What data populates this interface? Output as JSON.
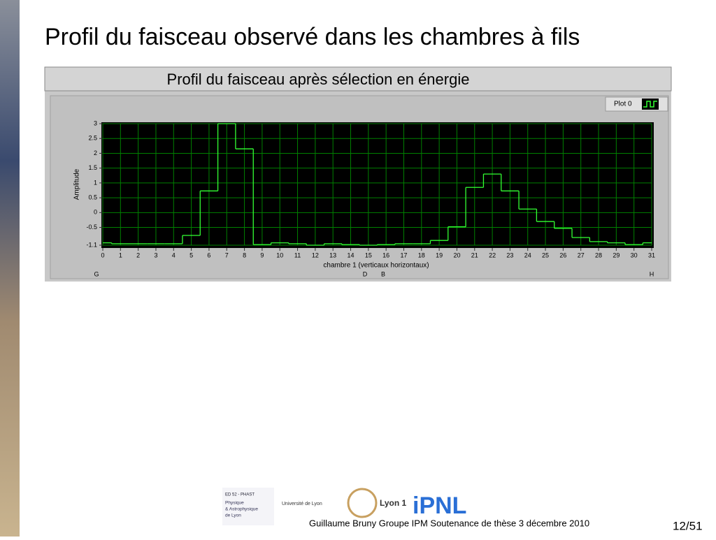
{
  "slide_title": "Profil du faisceau observé dans les chambres à fils",
  "chart_data": {
    "type": "step",
    "title": "Profil du faisceau après sélection en énergie",
    "x_label": "chambre 1 (verticaux horizontaux)",
    "y_label": "Amplitude",
    "x": [
      0,
      1,
      2,
      3,
      4,
      5,
      6,
      7,
      8,
      9,
      10,
      11,
      12,
      13,
      14,
      15,
      16,
      17,
      18,
      19,
      20,
      21,
      22,
      23,
      24,
      25,
      26,
      27,
      28,
      29,
      30,
      31
    ],
    "series": [
      {
        "name": "Plot 0",
        "color": "#33ff33",
        "values": [
          -1.02,
          -1.05,
          -1.05,
          -1.05,
          -1.05,
          -0.77,
          0.73,
          3.0,
          2.15,
          -1.08,
          -1.02,
          -1.05,
          -1.1,
          -1.05,
          -1.08,
          -1.1,
          -1.08,
          -1.05,
          -1.05,
          -0.94,
          -0.48,
          0.85,
          1.3,
          0.73,
          0.12,
          -0.3,
          -0.53,
          -0.84,
          -0.98,
          -1.02,
          -1.08,
          -1.02
        ]
      }
    ],
    "xlim": [
      0,
      31
    ],
    "xticks": [
      0,
      1,
      2,
      3,
      4,
      5,
      6,
      7,
      8,
      9,
      10,
      11,
      12,
      13,
      14,
      15,
      16,
      17,
      18,
      19,
      20,
      21,
      22,
      23,
      24,
      25,
      26,
      27,
      28,
      29,
      30,
      31
    ],
    "ylim": [
      -1.1,
      3
    ],
    "yticks": [
      -1.1,
      -0.5,
      0,
      0.5,
      1,
      1.5,
      2,
      2.5,
      3
    ],
    "grid": true,
    "grid_color": "#008000",
    "background": "#000000",
    "annotations": [
      "G",
      "D",
      "B",
      "H"
    ]
  },
  "logos": [
    "ED 52 - PHAST",
    "Physique",
    "& Astrophysique",
    "de Lyon",
    "Université de Lyon",
    "Lyon 1",
    "iPNL"
  ],
  "footer": {
    "text": "Guillaume Bruny Groupe IPM Soutenance de thèse  3 décembre 2010",
    "page": "12/51"
  }
}
